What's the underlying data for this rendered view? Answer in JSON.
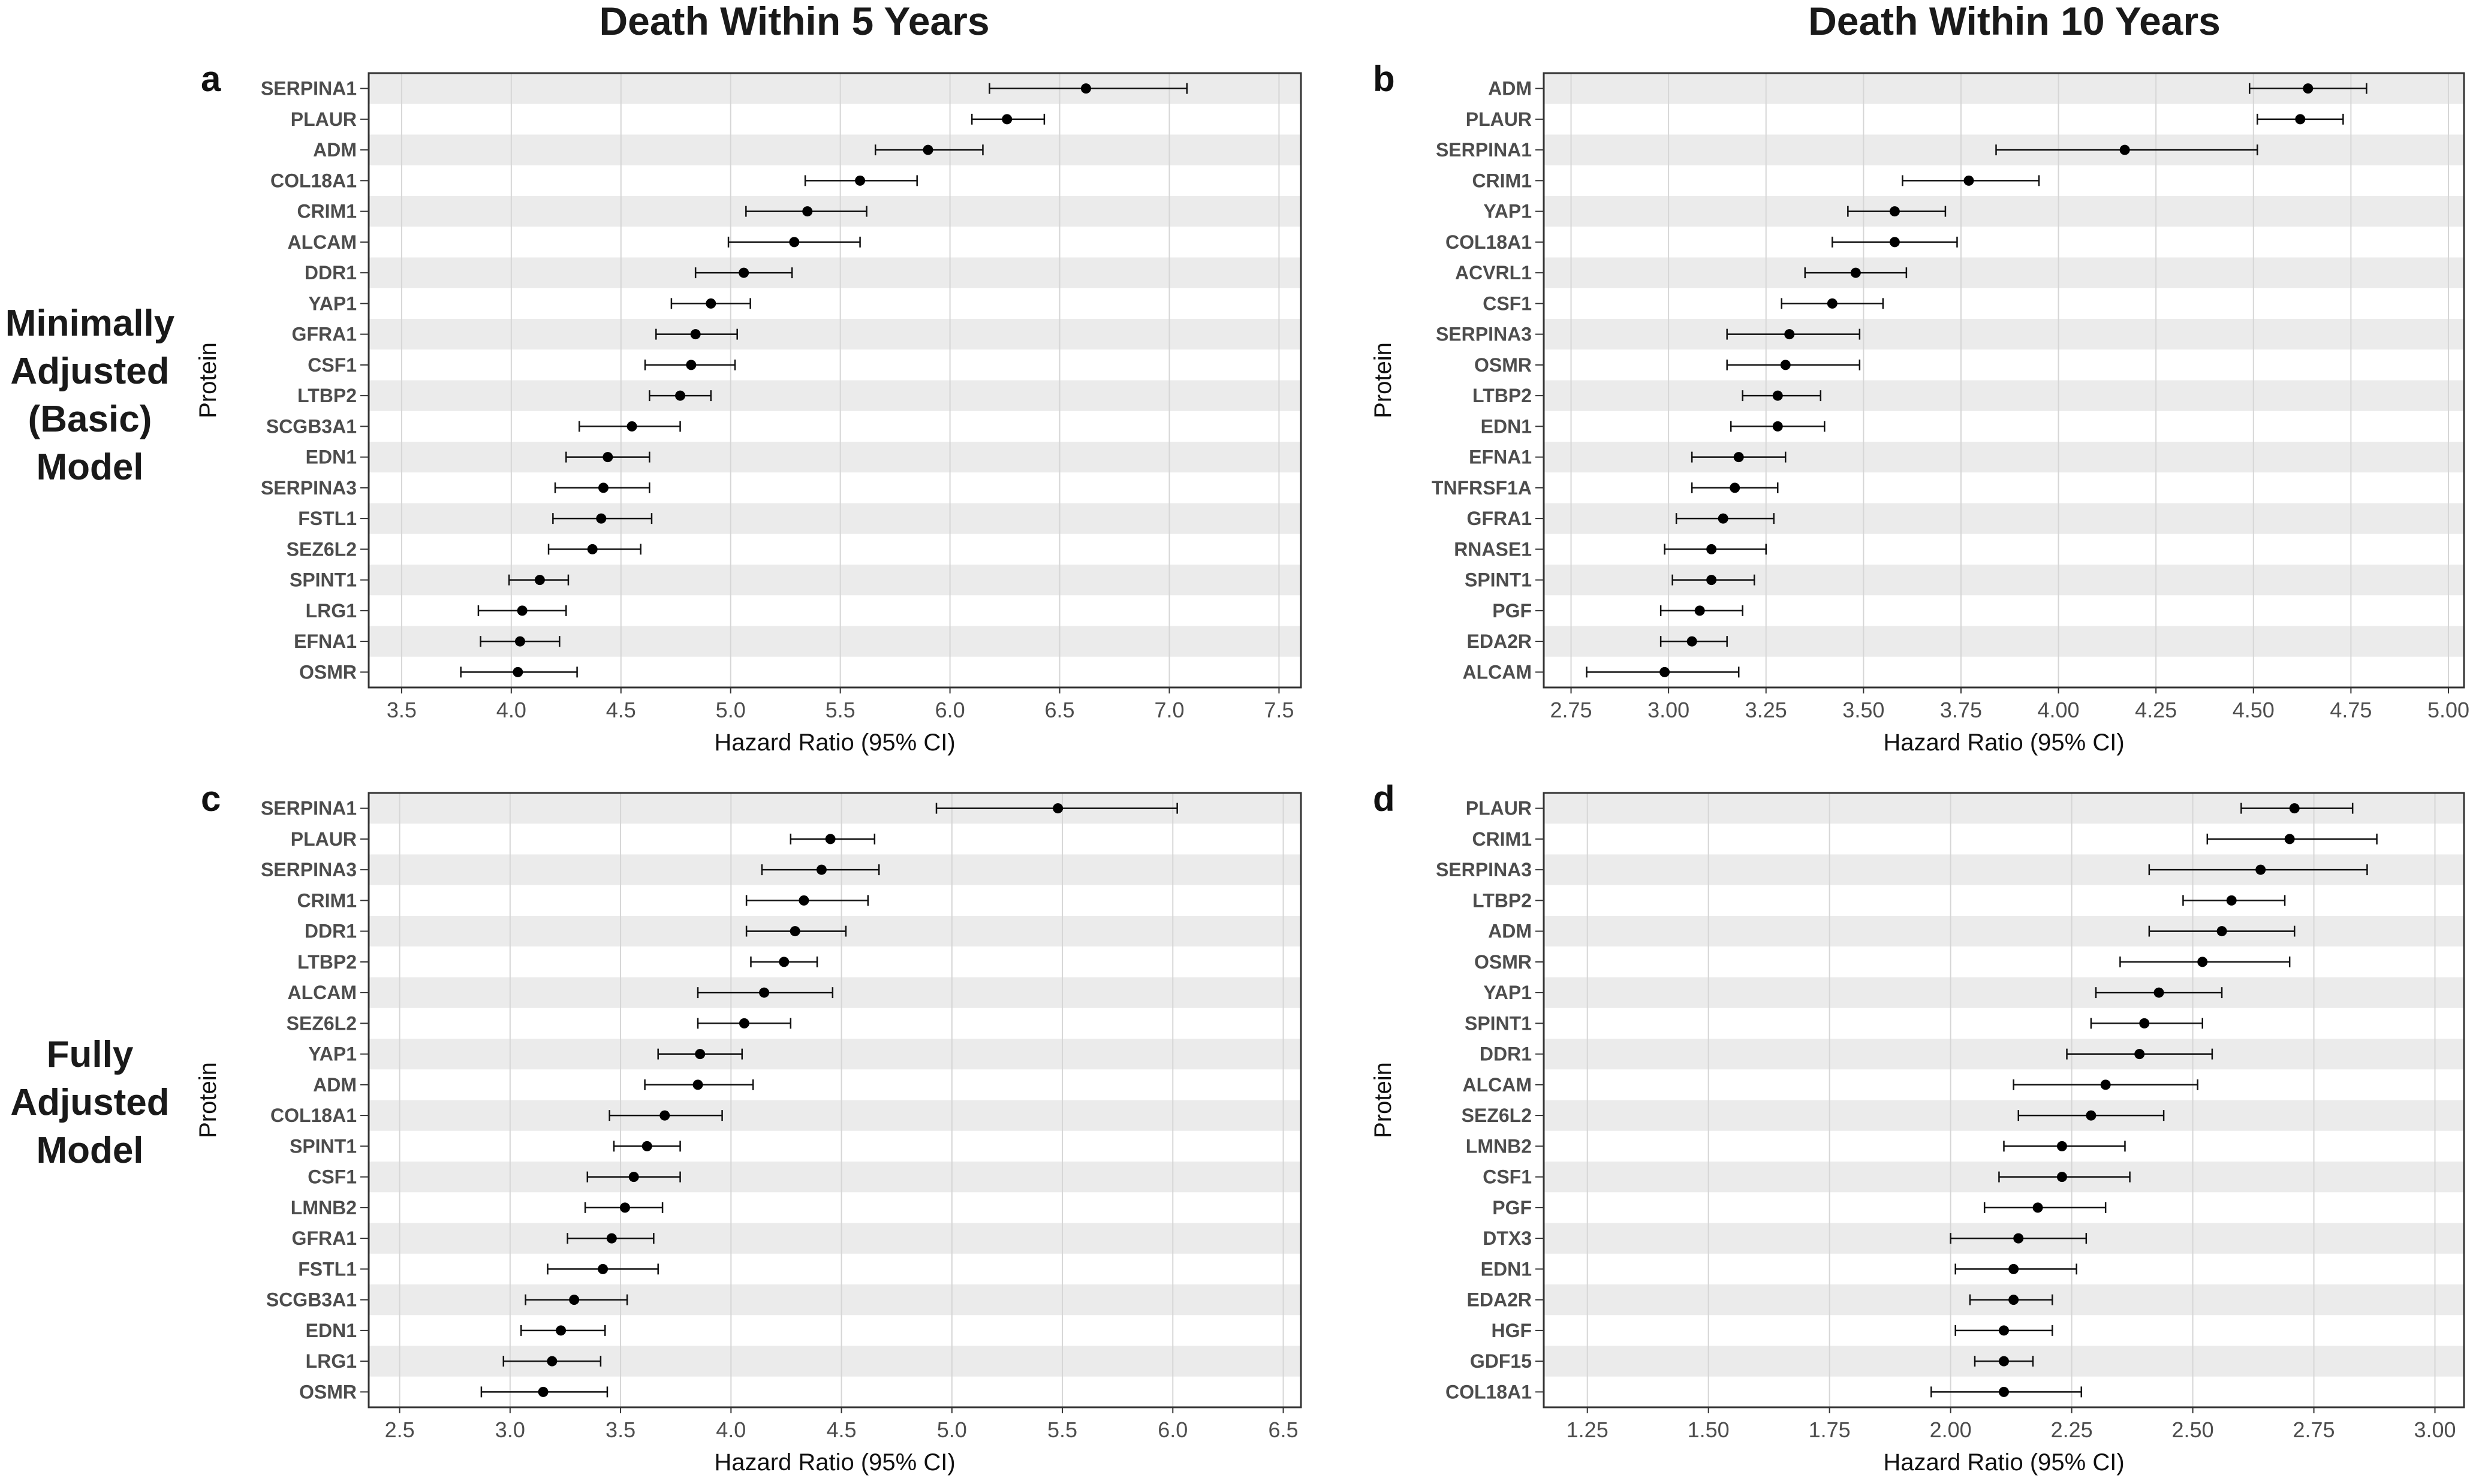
{
  "figure": {
    "col_titles": [
      "Death Within 5 Years",
      "Death Within 10 Years"
    ],
    "row_titles": [
      [
        "Minimally",
        "Adjusted",
        "(Basic)",
        "Model"
      ],
      [
        "Fully",
        "Adjusted",
        "Model"
      ]
    ]
  },
  "chart_data": [
    {
      "panel": "a",
      "type": "scatter",
      "subtype": "forest-plot",
      "xlabel": "Hazard Ratio (95% CI)",
      "ylabel": "Protein",
      "xlim": [
        3.35,
        7.6
      ],
      "xticks": [
        3.5,
        4.0,
        4.5,
        5.0,
        5.5,
        6.0,
        6.5,
        7.0,
        7.5
      ],
      "tick_decimals": 1,
      "grid": true,
      "row_banding": true,
      "proteins": [
        "SERPINA1",
        "PLAUR",
        "ADM",
        "COL18A1",
        "CRIM1",
        "ALCAM",
        "DDR1",
        "YAP1",
        "GFRA1",
        "CSF1",
        "LTBP2",
        "SCGB3A1",
        "EDN1",
        "SERPINA3",
        "FSTL1",
        "SEZ6L2",
        "SPINT1",
        "LRG1",
        "EFNA1",
        "OSMR"
      ],
      "hr": [
        6.62,
        6.26,
        5.9,
        5.59,
        5.35,
        5.29,
        5.06,
        4.91,
        4.84,
        4.82,
        4.77,
        4.55,
        4.44,
        4.42,
        4.41,
        4.37,
        4.13,
        4.05,
        4.04,
        4.03
      ],
      "ci_low": [
        6.18,
        6.1,
        5.66,
        5.34,
        5.07,
        4.99,
        4.84,
        4.73,
        4.66,
        4.61,
        4.63,
        4.31,
        4.25,
        4.2,
        4.19,
        4.17,
        3.99,
        3.85,
        3.86,
        3.77
      ],
      "ci_high": [
        7.08,
        6.43,
        6.15,
        5.85,
        5.62,
        5.59,
        5.28,
        5.09,
        5.03,
        5.02,
        4.91,
        4.77,
        4.63,
        4.63,
        4.64,
        4.59,
        4.26,
        4.25,
        4.22,
        4.3
      ]
    },
    {
      "panel": "b",
      "type": "scatter",
      "subtype": "forest-plot",
      "xlabel": "Hazard Ratio (95% CI)",
      "ylabel": "Protein",
      "xlim": [
        2.68,
        5.04
      ],
      "xticks": [
        2.75,
        3.0,
        3.25,
        3.5,
        3.75,
        4.0,
        4.25,
        4.5,
        4.75,
        5.0
      ],
      "tick_decimals": 2,
      "grid": true,
      "row_banding": true,
      "proteins": [
        "ADM",
        "PLAUR",
        "SERPINA1",
        "CRIM1",
        "YAP1",
        "COL18A1",
        "ACVRL1",
        "CSF1",
        "SERPINA3",
        "OSMR",
        "LTBP2",
        "EDN1",
        "EFNA1",
        "TNFRSF1A",
        "GFRA1",
        "RNASE1",
        "SPINT1",
        "PGF",
        "EDA2R",
        "ALCAM"
      ],
      "hr": [
        4.64,
        4.62,
        4.17,
        3.77,
        3.58,
        3.58,
        3.48,
        3.42,
        3.31,
        3.3,
        3.28,
        3.28,
        3.18,
        3.17,
        3.14,
        3.11,
        3.11,
        3.08,
        3.06,
        2.99
      ],
      "ci_low": [
        4.49,
        4.51,
        3.84,
        3.6,
        3.46,
        3.42,
        3.35,
        3.29,
        3.15,
        3.15,
        3.19,
        3.16,
        3.06,
        3.06,
        3.02,
        2.99,
        3.01,
        2.98,
        2.98,
        2.79
      ],
      "ci_high": [
        4.79,
        4.73,
        4.51,
        3.95,
        3.71,
        3.74,
        3.61,
        3.55,
        3.49,
        3.49,
        3.39,
        3.4,
        3.3,
        3.28,
        3.27,
        3.25,
        3.22,
        3.19,
        3.15,
        3.18
      ]
    },
    {
      "panel": "c",
      "type": "scatter",
      "subtype": "forest-plot",
      "xlabel": "Hazard Ratio (95% CI)",
      "ylabel": "Protein",
      "xlim": [
        2.36,
        6.58
      ],
      "xticks": [
        2.5,
        3.0,
        3.5,
        4.0,
        4.5,
        5.0,
        5.5,
        6.0,
        6.5
      ],
      "tick_decimals": 1,
      "grid": true,
      "row_banding": true,
      "proteins": [
        "SERPINA1",
        "PLAUR",
        "SERPINA3",
        "CRIM1",
        "DDR1",
        "LTBP2",
        "ALCAM",
        "SEZ6L2",
        "YAP1",
        "ADM",
        "COL18A1",
        "SPINT1",
        "CSF1",
        "LMNB2",
        "GFRA1",
        "FSTL1",
        "SCGB3A1",
        "EDN1",
        "LRG1",
        "OSMR"
      ],
      "hr": [
        5.48,
        4.45,
        4.41,
        4.33,
        4.29,
        4.24,
        4.15,
        4.06,
        3.86,
        3.85,
        3.7,
        3.62,
        3.56,
        3.52,
        3.46,
        3.42,
        3.29,
        3.23,
        3.19,
        3.15
      ],
      "ci_low": [
        4.93,
        4.27,
        4.14,
        4.07,
        4.07,
        4.09,
        3.85,
        3.85,
        3.67,
        3.61,
        3.45,
        3.47,
        3.35,
        3.34,
        3.26,
        3.17,
        3.07,
        3.05,
        2.97,
        2.87
      ],
      "ci_high": [
        6.02,
        4.65,
        4.67,
        4.62,
        4.52,
        4.39,
        4.46,
        4.27,
        4.05,
        4.1,
        3.96,
        3.77,
        3.77,
        3.69,
        3.65,
        3.67,
        3.53,
        3.43,
        3.41,
        3.44
      ]
    },
    {
      "panel": "d",
      "type": "scatter",
      "subtype": "forest-plot",
      "xlabel": "Hazard Ratio (95% CI)",
      "ylabel": "Protein",
      "xlim": [
        1.16,
        3.06
      ],
      "xticks": [
        1.25,
        1.5,
        1.75,
        2.0,
        2.25,
        2.5,
        2.75,
        3.0
      ],
      "tick_decimals": 2,
      "grid": true,
      "row_banding": true,
      "proteins": [
        "PLAUR",
        "CRIM1",
        "SERPINA3",
        "LTBP2",
        "ADM",
        "OSMR",
        "YAP1",
        "SPINT1",
        "DDR1",
        "ALCAM",
        "SEZ6L2",
        "LMNB2",
        "CSF1",
        "PGF",
        "DTX3",
        "EDN1",
        "EDA2R",
        "HGF",
        "GDF15",
        "COL18A1"
      ],
      "hr": [
        2.71,
        2.7,
        2.64,
        2.58,
        2.56,
        2.52,
        2.43,
        2.4,
        2.39,
        2.32,
        2.29,
        2.23,
        2.23,
        2.18,
        2.14,
        2.13,
        2.13,
        2.11,
        2.11,
        2.11
      ],
      "ci_low": [
        2.6,
        2.53,
        2.41,
        2.48,
        2.41,
        2.35,
        2.3,
        2.29,
        2.24,
        2.13,
        2.14,
        2.11,
        2.1,
        2.07,
        2.0,
        2.01,
        2.04,
        2.01,
        2.05,
        1.96
      ],
      "ci_high": [
        2.83,
        2.88,
        2.86,
        2.69,
        2.71,
        2.7,
        2.56,
        2.52,
        2.54,
        2.51,
        2.44,
        2.36,
        2.37,
        2.32,
        2.28,
        2.26,
        2.21,
        2.21,
        2.17,
        2.27
      ]
    }
  ]
}
